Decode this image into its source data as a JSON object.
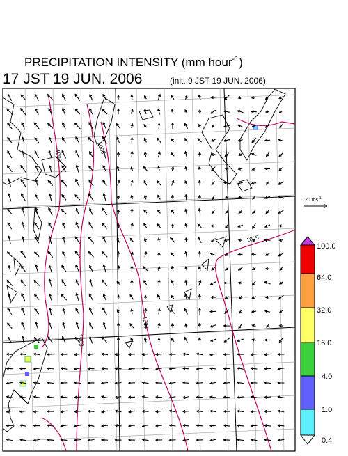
{
  "header": {
    "title": "PRECIPITATION INTENSITY (mm hour",
    "title_superscript": "-1",
    "title_close": ")",
    "valid_time": "17 JST 19 JUN. 2006",
    "init_time": "(init. 9 JST 19 JUN. 2006)"
  },
  "vector_scale": {
    "label": "20 ms",
    "superscript": "-1"
  },
  "contours": {
    "labels": [
      "1003",
      "1006",
      "1004",
      "1003",
      "1005"
    ]
  },
  "colorbar": {
    "labels": [
      "100.0",
      "64.0",
      "32.0",
      "16.0",
      "4.0",
      "1.0",
      "0.4"
    ]
  }
}
